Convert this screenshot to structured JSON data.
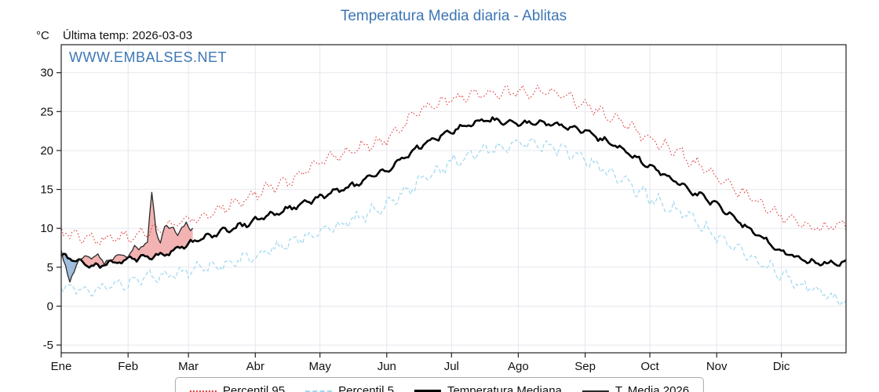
{
  "header": {
    "title": "Temperatura Media diaria - Ablitas",
    "unit_label": "°C",
    "last_temp": "Última temp: 2026-03-03",
    "watermark": "WWW.EMBALSES.NET"
  },
  "colors": {
    "title": "#3d76b5",
    "watermark": "#3d76b5",
    "grid": "#e4e7ee",
    "axis": "#222222",
    "p95": "#e03c3c",
    "p5": "#a0d8ef",
    "mediana": "#000000",
    "t2026": "#2a2a2a",
    "fill_above": "#f0a0a0",
    "fill_below": "#88aed6"
  },
  "chart_data": {
    "type": "line",
    "title": "Temperatura Media diaria - Ablitas",
    "ylabel": "°C",
    "ylim": [
      -6,
      33.6
    ],
    "y_ticks": [
      -5,
      0,
      5,
      10,
      15,
      20,
      25,
      30
    ],
    "categories": [
      "Ene",
      "Feb",
      "Mar",
      "Abr",
      "May",
      "Jun",
      "Jul",
      "Ago",
      "Sep",
      "Oct",
      "Nov",
      "Dic"
    ],
    "month_start_days": [
      0,
      31,
      59,
      90,
      120,
      151,
      181,
      212,
      243,
      273,
      304,
      334
    ],
    "days_in_year": 365,
    "grid": true,
    "legend_position": "bottom",
    "series": [
      {
        "name": "Percentil 95",
        "style": "dotted",
        "color_key": "p95",
        "jitter": 1.0,
        "anchor_days": [
          0,
          15,
          31,
          46,
          59,
          74,
          90,
          105,
          120,
          135,
          151,
          166,
          181,
          196,
          212,
          227,
          243,
          258,
          273,
          288,
          304,
          319,
          334,
          349,
          364
        ],
        "anchor_values": [
          9.5,
          8.5,
          9,
          10,
          11,
          12.5,
          14.5,
          16,
          18.5,
          20,
          21.5,
          25,
          26.5,
          27.5,
          27.5,
          27.5,
          26,
          24,
          21.5,
          19.5,
          16.5,
          14,
          11.5,
          10,
          10.5
        ]
      },
      {
        "name": "Percentil 5",
        "style": "dashed",
        "color_key": "p5",
        "jitter": 1.1,
        "anchor_days": [
          0,
          15,
          31,
          46,
          59,
          74,
          90,
          105,
          120,
          135,
          151,
          166,
          181,
          196,
          212,
          227,
          243,
          258,
          273,
          288,
          304,
          319,
          334,
          349,
          364
        ],
        "anchor_values": [
          2.5,
          2,
          3,
          4,
          4.5,
          5.5,
          6.5,
          8,
          9.5,
          11,
          13,
          16,
          18.5,
          20,
          21,
          20.5,
          19,
          16.5,
          14,
          12,
          9,
          6.5,
          4,
          2,
          0.5
        ]
      },
      {
        "name": "Temperatura Mediana",
        "style": "solid-thick",
        "color_key": "mediana",
        "jitter": 0.5,
        "anchor_days": [
          0,
          15,
          31,
          46,
          59,
          74,
          90,
          105,
          120,
          135,
          151,
          166,
          181,
          196,
          212,
          227,
          243,
          258,
          273,
          288,
          304,
          319,
          334,
          349,
          364
        ],
        "anchor_values": [
          6.5,
          5,
          6,
          6.5,
          8,
          9.5,
          11,
          12.5,
          14,
          15.5,
          17.5,
          20.5,
          22.5,
          24,
          23.5,
          23.5,
          22.5,
          20.5,
          18,
          15.5,
          13,
          10,
          7,
          5.5,
          5.5
        ]
      },
      {
        "name": "T. Media 2026",
        "style": "solid-thin",
        "color_key": "t2026",
        "jitter": 0.45,
        "day_range": [
          0,
          61
        ],
        "anchor_days": [
          0,
          2,
          4,
          6,
          8,
          11,
          14,
          17,
          20,
          23,
          26,
          29,
          31,
          34,
          36,
          38,
          40,
          42,
          43,
          44,
          46,
          48,
          50,
          52,
          54,
          56,
          58,
          60,
          61
        ],
        "anchor_values": [
          7,
          5.5,
          3.2,
          4,
          6,
          6.5,
          5.8,
          7,
          5.2,
          6,
          6.8,
          6.2,
          6.5,
          7.8,
          7.2,
          8,
          8.5,
          14.5,
          12,
          9.5,
          8.2,
          10.5,
          9.8,
          10.2,
          9.2,
          10,
          10.5,
          9.8,
          10.2
        ]
      }
    ],
    "legend": [
      {
        "label": "Percentil 95"
      },
      {
        "label": "Percentil 5"
      },
      {
        "label": "Temperatura Mediana"
      },
      {
        "label": "T. Media 2026"
      }
    ]
  }
}
